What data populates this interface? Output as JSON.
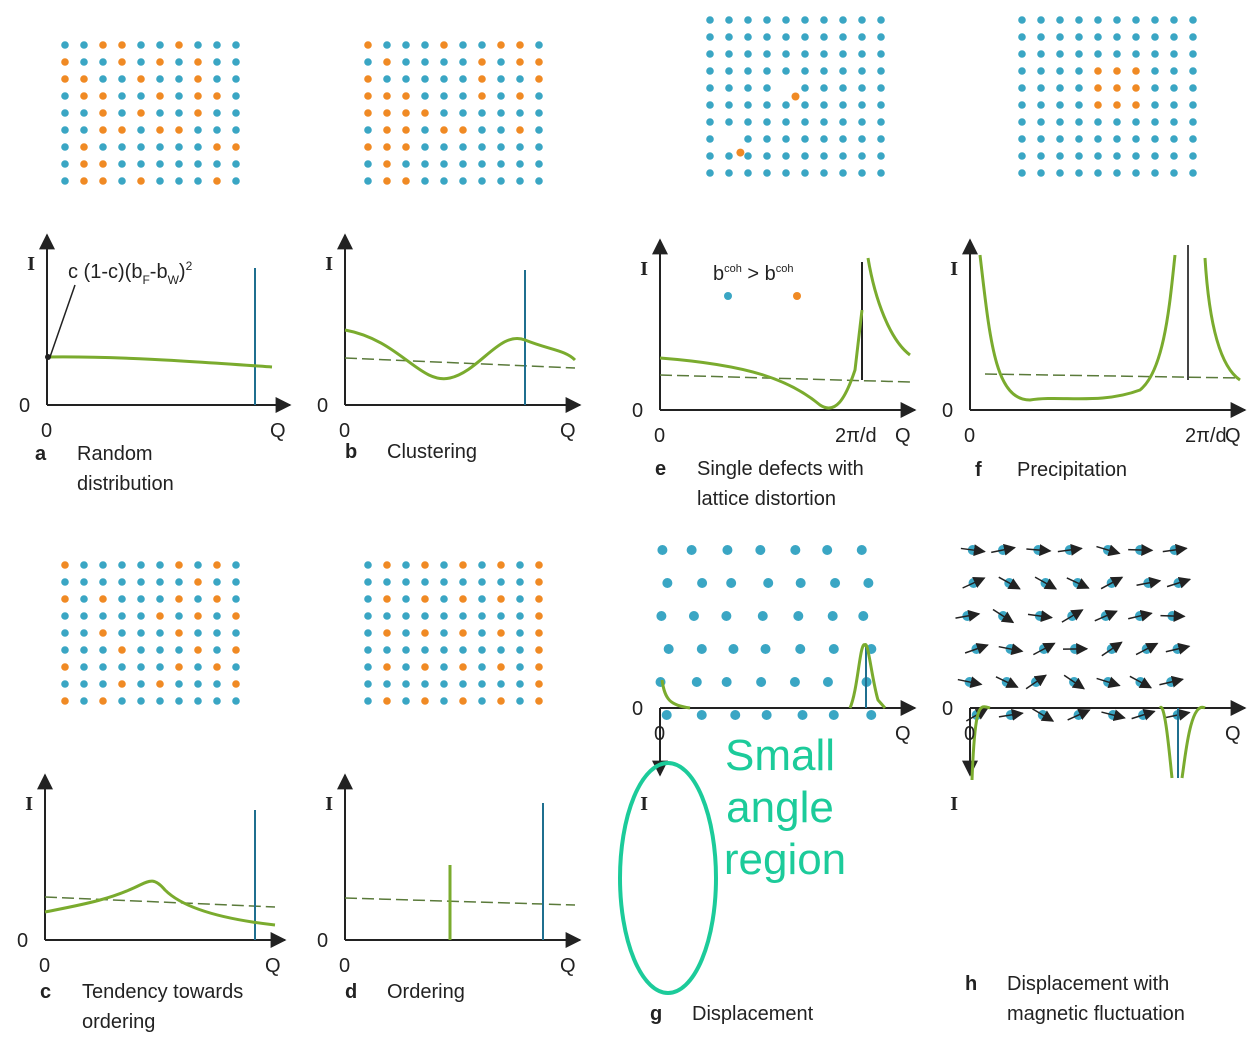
{
  "panels": [
    {
      "letter": "a",
      "caption": [
        "Random",
        "distribution"
      ],
      "y_label": "I",
      "origin": "0",
      "x_labels": [
        "0",
        "Q"
      ]
    },
    {
      "letter": "b",
      "caption": [
        "Clustering"
      ],
      "y_label": "I",
      "origin": "0",
      "x_labels": [
        "0",
        "Q"
      ]
    },
    {
      "letter": "e",
      "caption": [
        "Single defects with",
        "lattice distortion"
      ],
      "y_label": "I",
      "origin": "0",
      "x_labels": [
        "0",
        "2π/d",
        "Q"
      ]
    },
    {
      "letter": "f",
      "caption": [
        "Precipitation"
      ],
      "y_label": "I",
      "origin": "0",
      "x_labels": [
        "0",
        "2π/d",
        "Q"
      ]
    },
    {
      "letter": "c",
      "caption": [
        "Tendency towards",
        "ordering"
      ],
      "y_label": "I",
      "origin": "0",
      "x_labels": [
        "0",
        "Q"
      ]
    },
    {
      "letter": "d",
      "caption": [
        "Ordering"
      ],
      "y_label": "I",
      "origin": "0",
      "x_labels": [
        "0",
        "Q"
      ]
    },
    {
      "letter": "g",
      "caption": [
        "Displacement"
      ],
      "y_label": "I",
      "origin": "0",
      "x_labels": [
        "0",
        "Q"
      ]
    },
    {
      "letter": "h",
      "caption": [
        "Displacement with",
        "magnetic fluctuation"
      ],
      "y_label": "I",
      "origin": "0",
      "x_labels": [
        "0",
        "Q"
      ]
    }
  ],
  "annotation_a": [
    "c (1-c)(b",
    "F",
    "-b",
    "W",
    ")",
    "2"
  ],
  "annotation_e": [
    "b",
    "coh",
    " > b",
    "coh"
  ],
  "overlay": [
    "Small",
    "angle",
    "region"
  ]
}
